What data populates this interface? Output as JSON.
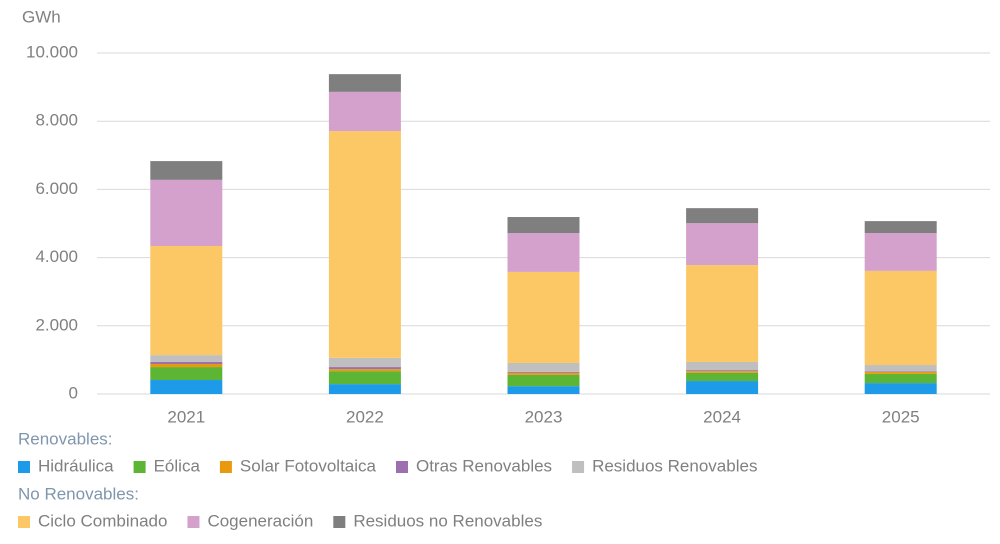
{
  "chart_data": {
    "type": "stacked_bar",
    "y_label": "GWh",
    "categories": [
      "2021",
      "2022",
      "2023",
      "2024",
      "2025"
    ],
    "series": [
      {
        "name": "Hidráulica",
        "group": "Renovables:",
        "color": "#1e9be8",
        "values": [
          410,
          290,
          230,
          380,
          320
        ]
      },
      {
        "name": "Eólica",
        "group": "Renovables:",
        "color": "#5db535",
        "values": [
          380,
          380,
          330,
          240,
          270
        ]
      },
      {
        "name": "Solar Fotovoltaica",
        "group": "Renovables:",
        "color": "#e89a0c",
        "values": [
          90,
          60,
          60,
          50,
          60
        ]
      },
      {
        "name": "Otras Renovables",
        "group": "Renovables:",
        "color": "#9d6fae",
        "values": [
          60,
          60,
          30,
          30,
          20
        ]
      },
      {
        "name": "Residuos Renovables",
        "group": "Renovables:",
        "color": "#bfbfbf",
        "values": [
          200,
          270,
          260,
          240,
          180
        ]
      },
      {
        "name": "Ciclo Combinado",
        "group": "No Renovables:",
        "color": "#fcc865",
        "values": [
          3200,
          6650,
          2670,
          2840,
          2760
        ]
      },
      {
        "name": "Cogeneración",
        "group": "No Renovables:",
        "color": "#d3a1cb",
        "values": [
          1940,
          1150,
          1140,
          1230,
          1110
        ]
      },
      {
        "name": "Residuos no Renovables",
        "group": "No Renovables:",
        "color": "#7f7f7f",
        "values": [
          550,
          520,
          470,
          440,
          350
        ]
      }
    ],
    "ylim": [
      0,
      10000
    ],
    "yticks": [
      0,
      {
        "value": 2000,
        "label": "2.000"
      },
      {
        "value": 4000,
        "label": "4.000"
      },
      {
        "value": 6000,
        "label": "6.000"
      },
      {
        "value": 8000,
        "label": "8.000"
      },
      {
        "value": 10000,
        "label": "10.000"
      }
    ],
    "grid": true
  }
}
